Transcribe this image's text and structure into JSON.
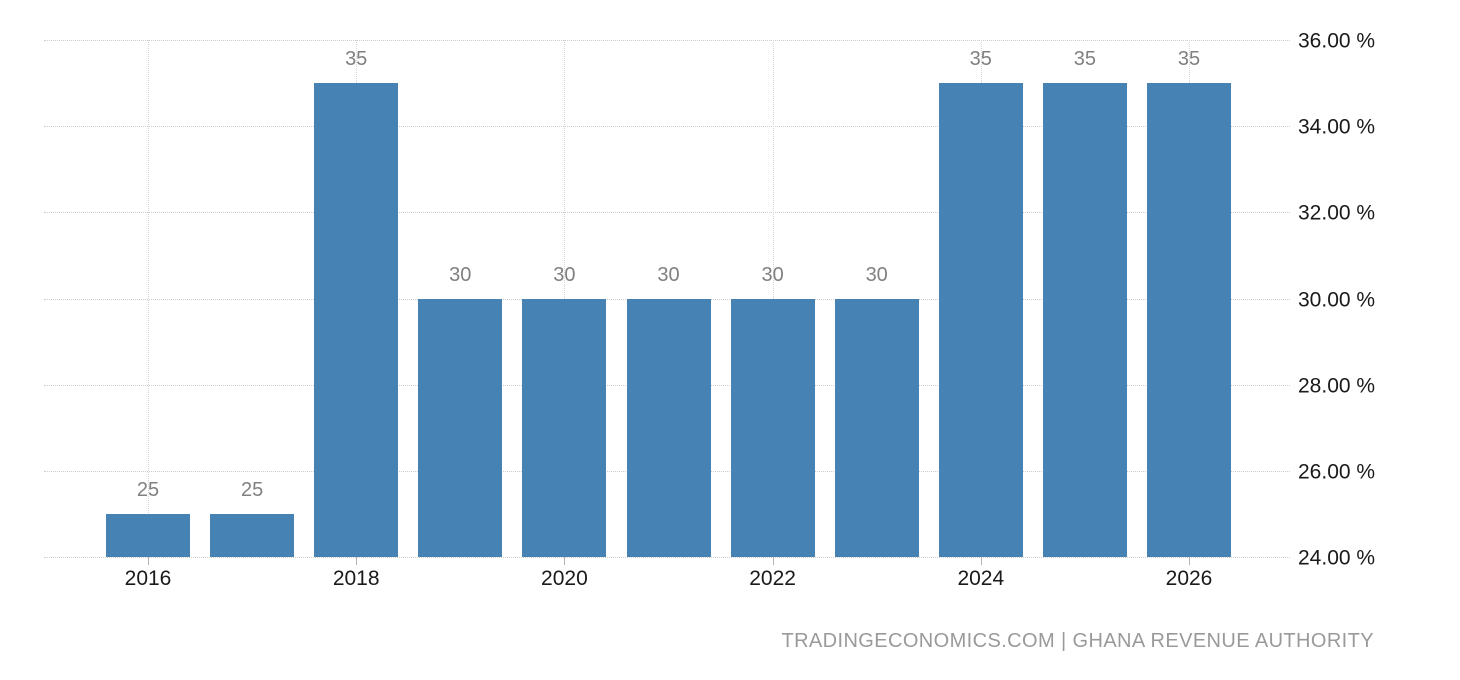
{
  "chart_data": {
    "type": "bar",
    "title": "",
    "xlabel": "",
    "ylabel": "",
    "x": [
      2016,
      2017,
      2018,
      2019,
      2020,
      2021,
      2022,
      2023,
      2024,
      2025,
      2026
    ],
    "values": [
      25,
      25,
      35,
      30,
      30,
      30,
      30,
      30,
      35,
      35,
      35
    ],
    "bar_labels": [
      "25",
      "25",
      "35",
      "30",
      "30",
      "30",
      "30",
      "30",
      "35",
      "35",
      "35"
    ],
    "xtick_years": [
      2016,
      2018,
      2020,
      2022,
      2024,
      2026
    ],
    "xtick_labels": [
      "2016",
      "2018",
      "2020",
      "2022",
      "2024",
      "2026"
    ],
    "ytick_values": [
      24,
      26,
      28,
      30,
      32,
      34,
      36
    ],
    "ytick_labels": [
      "24.00 %",
      "26.00 %",
      "28.00 %",
      "30.00 %",
      "32.00 %",
      "34.00 %",
      "36.00 %"
    ],
    "ylim": [
      24,
      36
    ],
    "legend": "none",
    "grid": "dotted horizontal at each y tick, dotted vertical at labeled years",
    "colors": {
      "bar": "#4682b4",
      "bar_value_label": "#808080",
      "axis_text": "#1a1a1a",
      "gridline": "#cdcdcd",
      "tick_mark": "#b3b3b3",
      "background": "#ffffff",
      "attribution_text": "#9a9a9a"
    }
  },
  "footer": {
    "attribution": "TRADINGECONOMICS.COM | GHANA REVENUE AUTHORITY"
  }
}
